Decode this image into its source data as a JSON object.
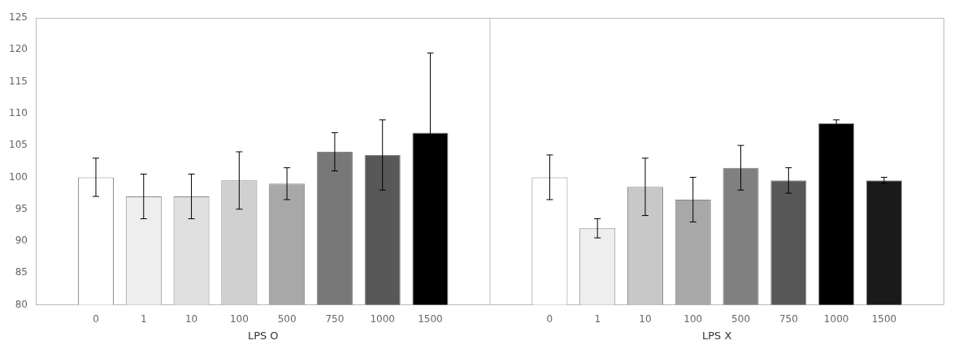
{
  "chart_data": {
    "type": "bar",
    "groups": [
      {
        "name": "LPS O",
        "categories": [
          "0",
          "1",
          "10",
          "100",
          "500",
          "750",
          "1000",
          "1500"
        ],
        "values": [
          100.0,
          97.0,
          97.0,
          99.5,
          99.0,
          104.0,
          103.5,
          107.0
        ],
        "errors": [
          3.0,
          3.5,
          3.5,
          4.5,
          2.5,
          3.0,
          5.5,
          12.5
        ],
        "colors": [
          "#ffffff",
          "#eeeeee",
          "#e0e0e0",
          "#d0d0d0",
          "#a8a8a8",
          "#787878",
          "#585858",
          "#000000"
        ]
      },
      {
        "name": "LPS X",
        "categories": [
          "0",
          "1",
          "10",
          "100",
          "500",
          "750",
          "1000",
          "1500"
        ],
        "values": [
          100.0,
          92.0,
          98.5,
          96.5,
          101.5,
          99.5,
          108.5,
          99.5
        ],
        "errors": [
          3.5,
          1.5,
          4.5,
          3.5,
          3.5,
          2.0,
          0.5,
          0.5
        ],
        "colors": [
          "#ffffff",
          "#eeeeee",
          "#c8c8c8",
          "#a8a8a8",
          "#808080",
          "#585858",
          "#000000",
          "#1a1a1a"
        ]
      }
    ],
    "ylim": [
      80,
      125
    ],
    "yticks": [
      80,
      85,
      90,
      95,
      100,
      105,
      110,
      115,
      120,
      125
    ],
    "grid": false
  }
}
